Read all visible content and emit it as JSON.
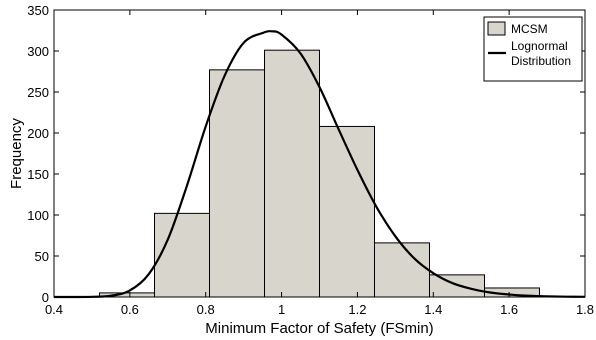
{
  "chart_data": {
    "type": "bar",
    "title": "",
    "xlabel": "Minimum Factor of Safety (FSmin)",
    "ylabel": "Frequency",
    "xlim": [
      0.4,
      1.8
    ],
    "ylim": [
      0,
      350
    ],
    "xticks": [
      "0.4",
      "0.6",
      "0.8",
      "1",
      "1.2",
      "1.4",
      "1.6",
      "1.8"
    ],
    "yticks": [
      "0",
      "50",
      "100",
      "150",
      "200",
      "250",
      "300",
      "350"
    ],
    "grid": false,
    "legend_position": "top-right",
    "histogram": {
      "name": "MCSM",
      "color": "#d8d5cd",
      "bins": [
        {
          "from": 0.52,
          "to": 0.665,
          "value": 5
        },
        {
          "from": 0.665,
          "to": 0.81,
          "value": 102
        },
        {
          "from": 0.81,
          "to": 0.955,
          "value": 277
        },
        {
          "from": 0.955,
          "to": 1.1,
          "value": 301
        },
        {
          "from": 1.1,
          "to": 1.245,
          "value": 208
        },
        {
          "from": 1.245,
          "to": 1.39,
          "value": 66
        },
        {
          "from": 1.39,
          "to": 1.535,
          "value": 27
        },
        {
          "from": 1.535,
          "to": 1.68,
          "value": 11
        }
      ]
    },
    "curve": {
      "name": "Lognormal\nDistribution",
      "color": "#000000",
      "x": [
        0.4,
        0.45,
        0.5,
        0.55,
        0.6,
        0.65,
        0.7,
        0.75,
        0.8,
        0.85,
        0.9,
        0.95,
        0.975,
        1.0,
        1.05,
        1.1,
        1.15,
        1.2,
        1.25,
        1.3,
        1.35,
        1.4,
        1.45,
        1.5,
        1.55,
        1.6,
        1.65,
        1.7,
        1.75,
        1.8
      ],
      "y": [
        0,
        0,
        0.2,
        1.5,
        8,
        28,
        70,
        135,
        208,
        270,
        310,
        322,
        324,
        320,
        297,
        256,
        205,
        155,
        110,
        74,
        47,
        29,
        17,
        10,
        5.5,
        3,
        1.6,
        0.8,
        0.4,
        0.2
      ]
    }
  }
}
